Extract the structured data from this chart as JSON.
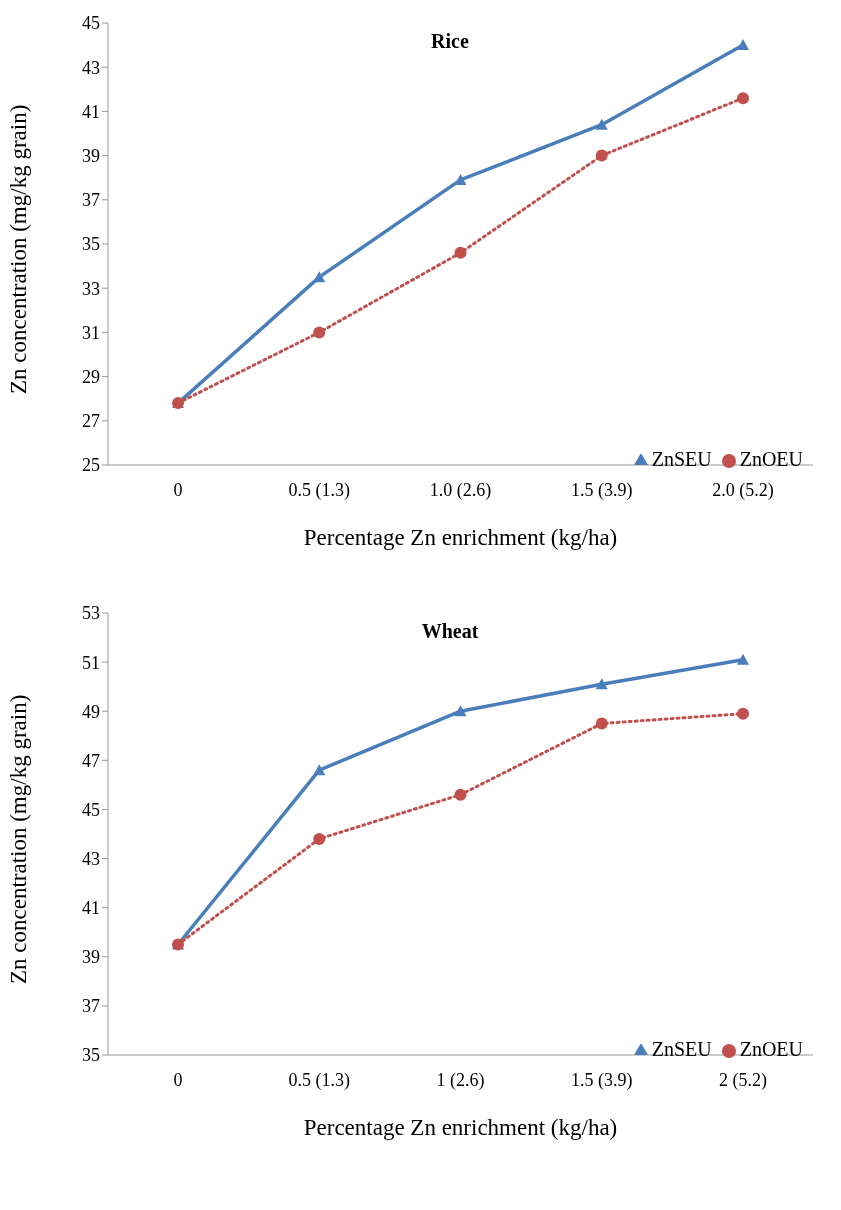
{
  "chart_data": [
    {
      "type": "line",
      "title": "Rice",
      "xlabel": "Percentage Zn enrichment (kg/ha)",
      "ylabel": "Zn concentration (mg/kg grain)",
      "categories": [
        "0",
        "0.5 (1.3)",
        "1.0 (2.6)",
        "1.5 (3.9)",
        "2.0 (5.2)"
      ],
      "ylim": [
        25,
        45
      ],
      "yticks": [
        25,
        27,
        29,
        31,
        33,
        35,
        37,
        39,
        41,
        43,
        45
      ],
      "grid": false,
      "legend": "bottom right",
      "series": [
        {
          "name": "ZnSEU",
          "color": "#4a7ebb",
          "values": [
            27.8,
            33.5,
            37.9,
            40.4,
            44.0
          ],
          "marker": "triangle",
          "line_style": "solid"
        },
        {
          "name": "ZnOEU",
          "color": "#c0504d",
          "values": [
            27.8,
            31.0,
            34.6,
            39.0,
            41.6
          ],
          "marker": "circle",
          "line_style": "dotted"
        }
      ]
    },
    {
      "type": "line",
      "title": "Wheat",
      "xlabel": "Percentage Zn enrichment (kg/ha)",
      "ylabel": "Zn concentration (mg/kg grain)",
      "categories": [
        "0",
        "0.5 (1.3)",
        "1 (2.6)",
        "1.5 (3.9)",
        "2 (5.2)"
      ],
      "ylim": [
        35,
        53
      ],
      "yticks": [
        35,
        37,
        39,
        41,
        43,
        45,
        47,
        49,
        51,
        53
      ],
      "grid": false,
      "legend": "bottom right",
      "series": [
        {
          "name": "ZnSEU",
          "color": "#4a7ebb",
          "values": [
            39.5,
            46.6,
            49.0,
            50.1,
            51.1
          ],
          "marker": "triangle",
          "line_style": "solid"
        },
        {
          "name": "ZnOEU",
          "color": "#c0504d",
          "values": [
            39.5,
            43.8,
            45.6,
            48.5,
            48.9
          ],
          "marker": "circle",
          "line_style": "dotted"
        }
      ]
    }
  ]
}
